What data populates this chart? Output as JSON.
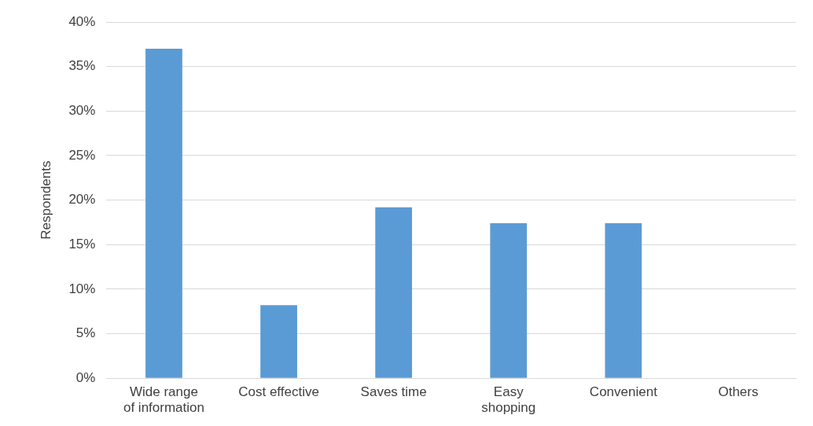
{
  "chart_data": {
    "type": "bar",
    "ylabel": "Respondents",
    "categories": [
      "Wide range of information",
      "Cost effective",
      "Saves time",
      "Easy shopping",
      "Convenient",
      "Others"
    ],
    "values": [
      37,
      8.2,
      19.2,
      17.4,
      17.4,
      0
    ],
    "color": "#5b9bd5",
    "ylim": [
      0,
      40
    ],
    "yticks": [
      {
        "value": 0,
        "label": "0%"
      },
      {
        "value": 5,
        "label": "5%"
      },
      {
        "value": 10,
        "label": "10%"
      },
      {
        "value": 15,
        "label": "15%"
      },
      {
        "value": 20,
        "label": "20%"
      },
      {
        "value": 25,
        "label": "25%"
      },
      {
        "value": 30,
        "label": "30%"
      },
      {
        "value": 35,
        "label": "35%"
      },
      {
        "value": 40,
        "label": "40%"
      }
    ],
    "grid": "y",
    "legend": false
  }
}
